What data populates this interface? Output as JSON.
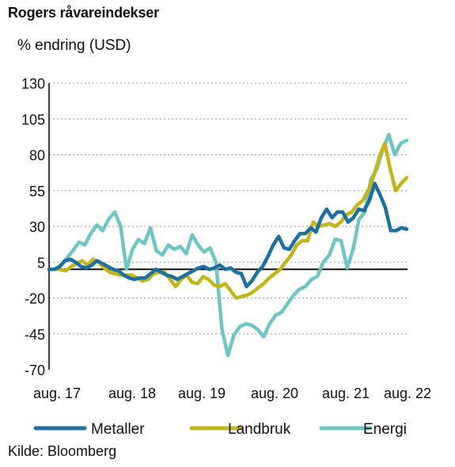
{
  "chart_data": {
    "type": "line",
    "title": "Rogers råvareindekser",
    "subtitle": "% endring (USD)",
    "source": "Kilde: Bloomberg",
    "ylim": [
      -70,
      130
    ],
    "yticks": [
      130,
      105,
      80,
      55,
      30,
      5,
      -20,
      -45,
      -70
    ],
    "x_tick_labels": [
      "aug. 17",
      "aug. 18",
      "aug. 19",
      "aug. 20",
      "aug. 21",
      "aug. 22"
    ],
    "x_start": "2017-08",
    "x_end": "2022-09",
    "grid": true,
    "legend_position": "bottom",
    "series": [
      {
        "name": "Metaller",
        "color": "#1a6fa3",
        "values": [
          0,
          0,
          2,
          6,
          7,
          5,
          2,
          1,
          3,
          6,
          4,
          2,
          0,
          -1,
          -4,
          -6,
          -7,
          -6,
          -6,
          -3,
          0,
          -2,
          -4,
          -5,
          -7,
          -5,
          -3,
          -1,
          1,
          2,
          0,
          1,
          3,
          0,
          1,
          -2,
          -3,
          -12,
          -8,
          -2,
          2,
          9,
          17,
          23,
          15,
          14,
          20,
          25,
          25,
          29,
          26,
          36,
          42,
          36,
          40,
          40,
          33,
          36,
          42,
          41,
          48,
          60,
          52,
          43,
          27,
          27,
          29,
          28
        ]
      },
      {
        "name": "Landbruk",
        "color": "#c2b514",
        "values": [
          0,
          0,
          0,
          -1,
          2,
          4,
          6,
          3,
          7,
          5,
          1,
          -2,
          -3,
          -4,
          -4,
          -4,
          -6,
          -8,
          -7,
          -3,
          -2,
          -2,
          -7,
          -12,
          -7,
          -4,
          -9,
          -10,
          -5,
          -7,
          -11,
          -12,
          -10,
          -15,
          -20,
          -19,
          -18,
          -16,
          -13,
          -10,
          -6,
          -3,
          0,
          5,
          10,
          17,
          20,
          20,
          33,
          30,
          31,
          32,
          30,
          33,
          38,
          40,
          45,
          48,
          55,
          65,
          78,
          88,
          70,
          55,
          60,
          64
        ]
      },
      {
        "name": "Energi",
        "color": "#6dc6c6",
        "values": [
          0,
          0,
          3,
          8,
          13,
          19,
          17,
          25,
          31,
          27,
          35,
          40,
          30,
          0,
          14,
          21,
          18,
          29,
          13,
          10,
          17,
          14,
          16,
          11,
          24,
          17,
          12,
          15,
          5,
          -42,
          -60,
          -46,
          -40,
          -38,
          -39,
          -42,
          -47,
          -38,
          -32,
          -30,
          -24,
          -18,
          -14,
          -12,
          -7,
          -5,
          5,
          10,
          21,
          20,
          1,
          14,
          35,
          40,
          63,
          70,
          84,
          94,
          80,
          88,
          90
        ]
      }
    ]
  }
}
